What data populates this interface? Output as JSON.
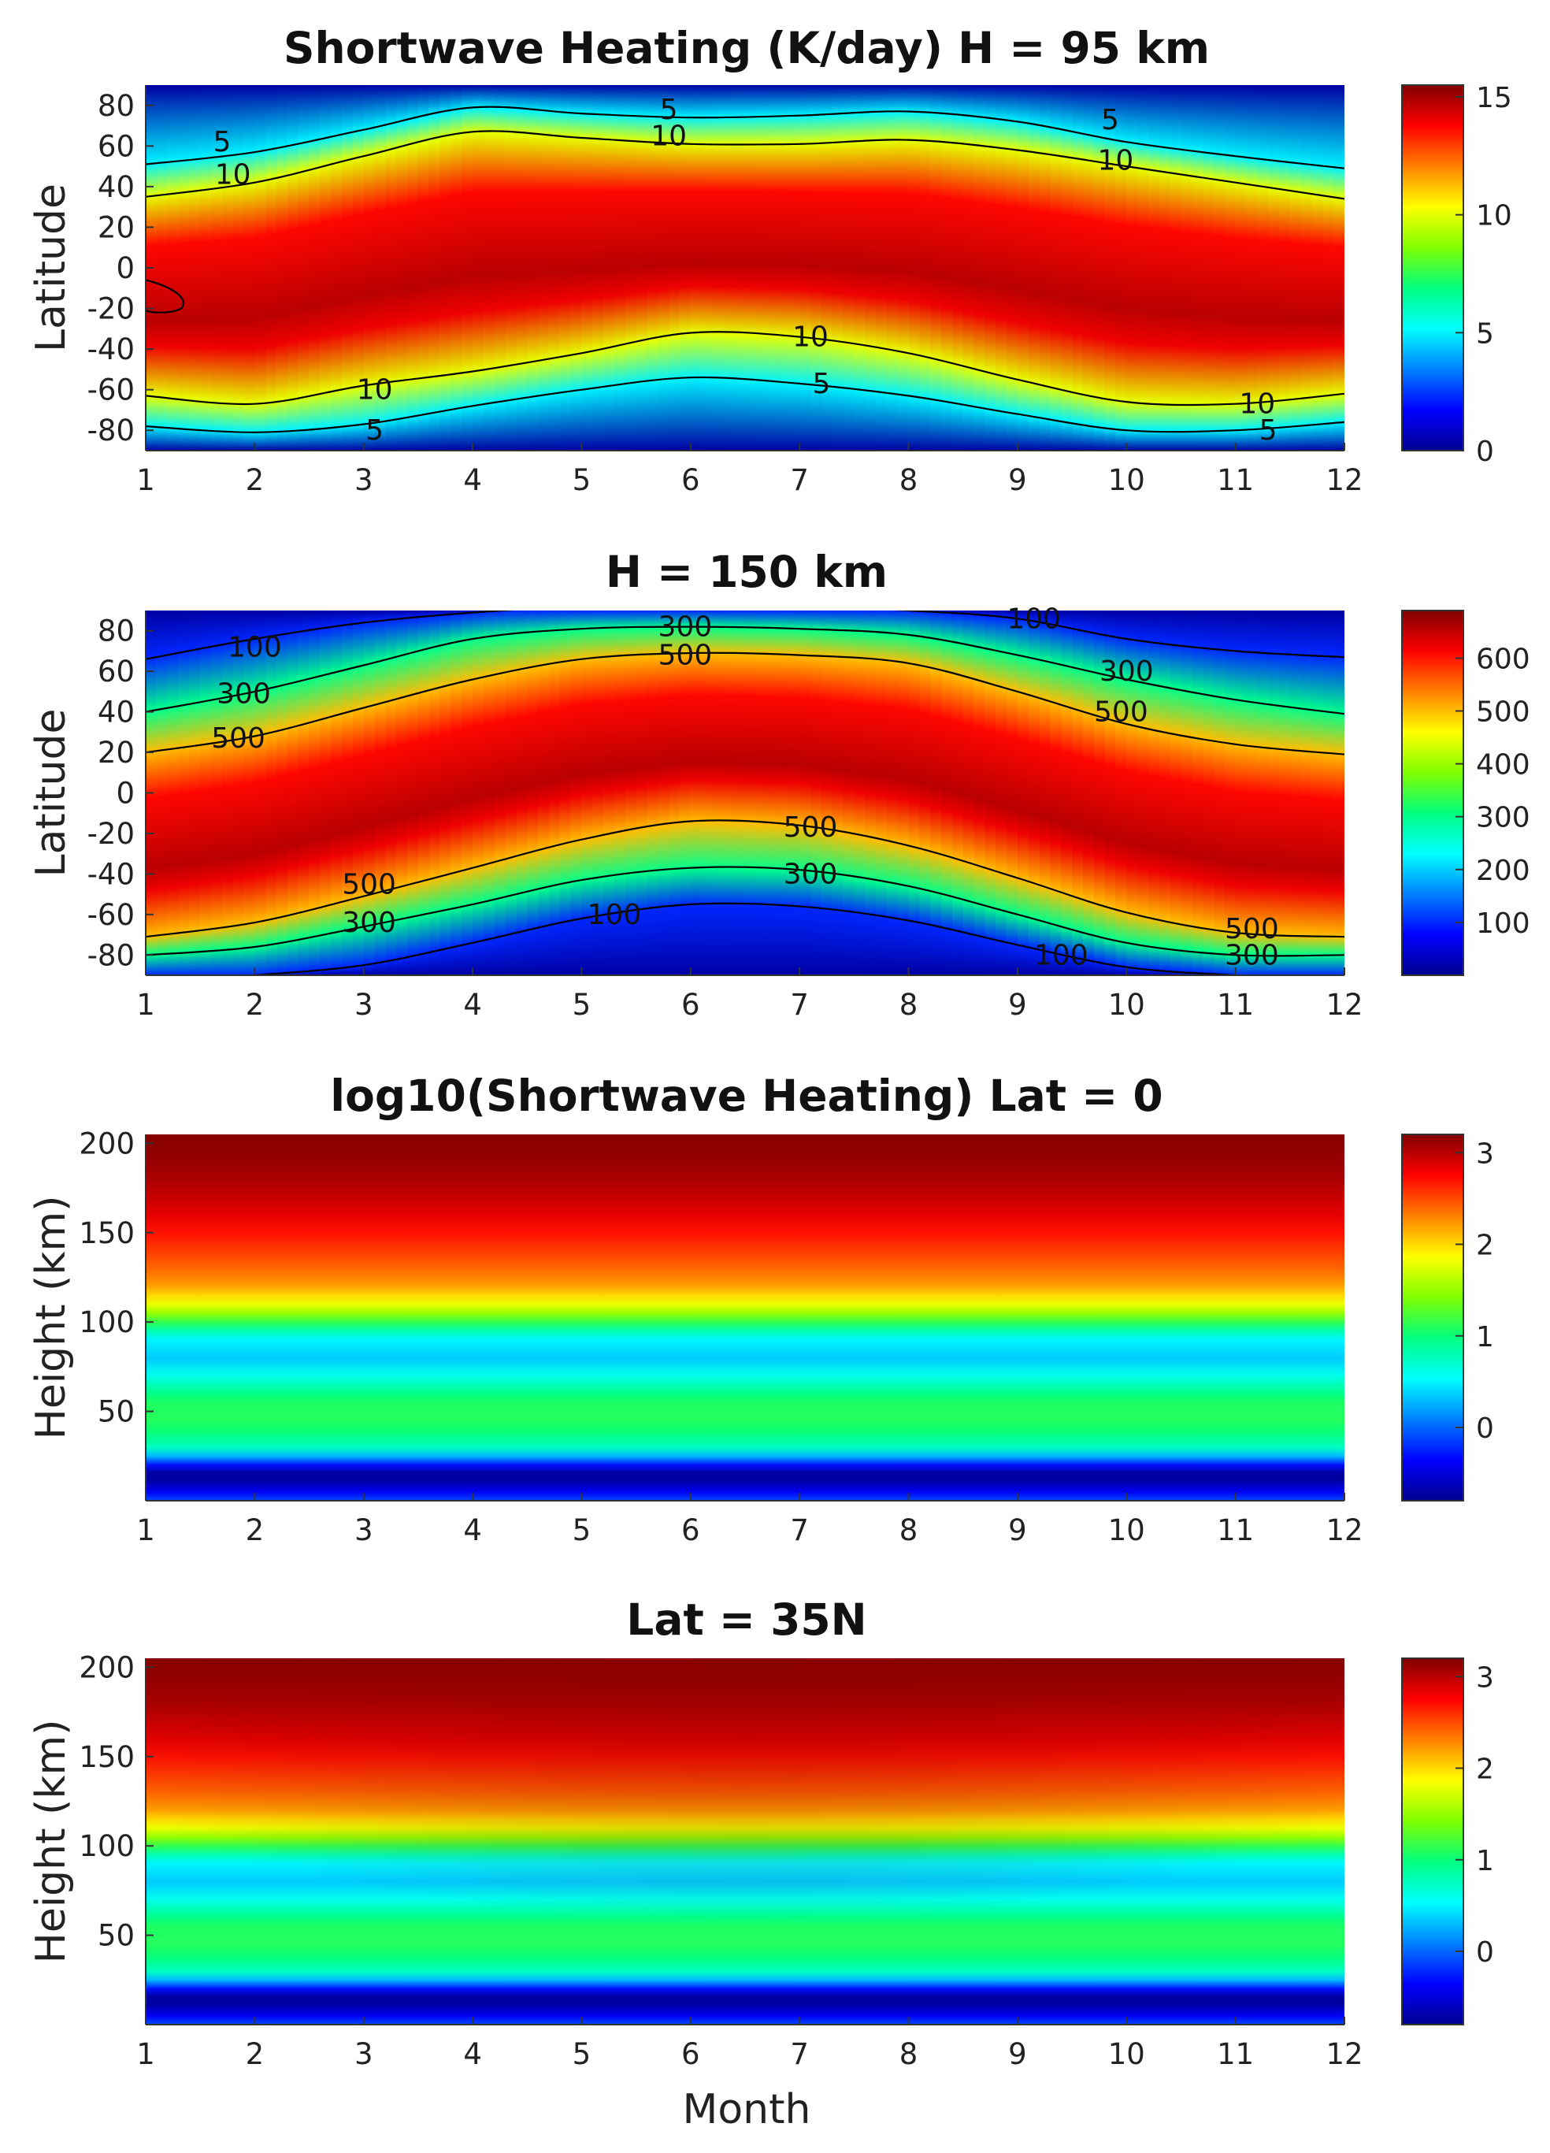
{
  "figure": {
    "xlabel": "Month",
    "colormap": [
      "#00008f",
      "#0000ff",
      "#0080ff",
      "#00ffff",
      "#00ff80",
      "#80ff00",
      "#ffff00",
      "#ff8000",
      "#ff0000",
      "#800000"
    ]
  },
  "chart_data": [
    {
      "type": "heatmap",
      "title": "Shortwave Heating (K/day) H = 95 km",
      "ylabel": "Latitude",
      "xlim": [
        1,
        12
      ],
      "ylim": [
        -90,
        90
      ],
      "x_ticks": [
        1,
        2,
        3,
        4,
        5,
        6,
        7,
        8,
        9,
        10,
        11,
        12
      ],
      "y_ticks": [
        80,
        60,
        40,
        20,
        0,
        -20,
        -40,
        -60,
        -80
      ],
      "colorbar": {
        "min": 0,
        "max": 15.5,
        "ticks": [
          15,
          10,
          5,
          0
        ]
      },
      "contours": [
        {
          "level": 5,
          "label": "5",
          "points": [
            [
              1,
              51
            ],
            [
              2,
              57
            ],
            [
              3,
              68
            ],
            [
              4,
              79
            ],
            [
              5,
              76
            ],
            [
              6,
              74
            ],
            [
              7,
              75
            ],
            [
              8,
              77
            ],
            [
              9,
              72
            ],
            [
              10,
              62
            ],
            [
              11,
              55
            ],
            [
              12,
              49
            ]
          ]
        },
        {
          "level": 10,
          "label": "10",
          "points": [
            [
              1,
              35
            ],
            [
              2,
              42
            ],
            [
              3,
              55
            ],
            [
              4,
              67
            ],
            [
              5,
              64
            ],
            [
              6,
              61
            ],
            [
              7,
              61
            ],
            [
              8,
              63
            ],
            [
              9,
              58
            ],
            [
              10,
              50
            ],
            [
              11,
              42
            ],
            [
              12,
              34
            ]
          ]
        },
        {
          "level": 10,
          "label": "10",
          "points": [
            [
              1,
              -63
            ],
            [
              2,
              -67
            ],
            [
              3,
              -58
            ],
            [
              4,
              -51
            ],
            [
              5,
              -42
            ],
            [
              6,
              -32
            ],
            [
              7,
              -34
            ],
            [
              8,
              -42
            ],
            [
              9,
              -55
            ],
            [
              10,
              -66
            ],
            [
              11,
              -67
            ],
            [
              12,
              -62
            ]
          ]
        },
        {
          "level": 5,
          "label": "5",
          "points": [
            [
              1,
              -78
            ],
            [
              2,
              -81
            ],
            [
              3,
              -77
            ],
            [
              4,
              -68
            ],
            [
              5,
              -60
            ],
            [
              6,
              -54
            ],
            [
              7,
              -57
            ],
            [
              8,
              -63
            ],
            [
              9,
              -72
            ],
            [
              10,
              -80
            ],
            [
              11,
              -80
            ],
            [
              12,
              -76
            ]
          ]
        }
      ],
      "contour_labels": [
        {
          "text": "5",
          "x": 1.7,
          "y": 62
        },
        {
          "text": "10",
          "x": 1.8,
          "y": 46
        },
        {
          "text": "5",
          "x": 5.8,
          "y": 78
        },
        {
          "text": "10",
          "x": 5.8,
          "y": 65
        },
        {
          "text": "5",
          "x": 9.85,
          "y": 73
        },
        {
          "text": "10",
          "x": 9.9,
          "y": 53
        },
        {
          "text": "10",
          "x": 3.1,
          "y": -60
        },
        {
          "text": "5",
          "x": 3.1,
          "y": -80
        },
        {
          "text": "10",
          "x": 7.1,
          "y": -34
        },
        {
          "text": "5",
          "x": 7.2,
          "y": -57
        },
        {
          "text": "10",
          "x": 11.2,
          "y": -67
        },
        {
          "text": "5",
          "x": 11.3,
          "y": -80
        }
      ]
    },
    {
      "type": "heatmap",
      "title": "H = 150 km",
      "ylabel": "Latitude",
      "xlim": [
        1,
        12
      ],
      "ylim": [
        -90,
        90
      ],
      "x_ticks": [
        1,
        2,
        3,
        4,
        5,
        6,
        7,
        8,
        9,
        10,
        11,
        12
      ],
      "y_ticks": [
        80,
        60,
        40,
        20,
        0,
        -20,
        -40,
        -60,
        -80
      ],
      "colorbar": {
        "min": 0,
        "max": 690,
        "ticks": [
          600,
          500,
          400,
          300,
          200,
          100
        ]
      },
      "contours": [
        {
          "level": 100,
          "label": "100",
          "points": [
            [
              1,
              66
            ],
            [
              2,
              76
            ],
            [
              3,
              84
            ],
            [
              4,
              89
            ],
            [
              5,
              92
            ],
            [
              6,
              92
            ],
            [
              7,
              92
            ],
            [
              8,
              90
            ],
            [
              9,
              86
            ],
            [
              10,
              76
            ],
            [
              11,
              70
            ],
            [
              12,
              67
            ]
          ]
        },
        {
          "level": 300,
          "label": "300",
          "points": [
            [
              1,
              40
            ],
            [
              2,
              50
            ],
            [
              3,
              63
            ],
            [
              4,
              76
            ],
            [
              5,
              81
            ],
            [
              6,
              82
            ],
            [
              7,
              81
            ],
            [
              8,
              78
            ],
            [
              9,
              68
            ],
            [
              10,
              56
            ],
            [
              11,
              46
            ],
            [
              12,
              39
            ]
          ]
        },
        {
          "level": 500,
          "label": "500",
          "points": [
            [
              1,
              20
            ],
            [
              2,
              28
            ],
            [
              3,
              42
            ],
            [
              4,
              56
            ],
            [
              5,
              66
            ],
            [
              6,
              69
            ],
            [
              7,
              68
            ],
            [
              8,
              64
            ],
            [
              9,
              50
            ],
            [
              10,
              34
            ],
            [
              11,
              24
            ],
            [
              12,
              19
            ]
          ]
        },
        {
          "level": 500,
          "label": "500",
          "points": [
            [
              1,
              -71
            ],
            [
              2,
              -64
            ],
            [
              3,
              -51
            ],
            [
              4,
              -37
            ],
            [
              5,
              -23
            ],
            [
              6,
              -14
            ],
            [
              7,
              -16
            ],
            [
              8,
              -26
            ],
            [
              9,
              -42
            ],
            [
              10,
              -59
            ],
            [
              11,
              -69
            ],
            [
              12,
              -71
            ]
          ]
        },
        {
          "level": 300,
          "label": "300",
          "points": [
            [
              1,
              -80
            ],
            [
              2,
              -76
            ],
            [
              3,
              -66
            ],
            [
              4,
              -55
            ],
            [
              5,
              -43
            ],
            [
              6,
              -37
            ],
            [
              7,
              -38
            ],
            [
              8,
              -46
            ],
            [
              9,
              -60
            ],
            [
              10,
              -74
            ],
            [
              11,
              -80
            ],
            [
              12,
              -80
            ]
          ]
        },
        {
          "level": 100,
          "label": "100",
          "points": [
            [
              1,
              -94
            ],
            [
              2,
              -90
            ],
            [
              3,
              -85
            ],
            [
              4,
              -74
            ],
            [
              5,
              -62
            ],
            [
              6,
              -55
            ],
            [
              7,
              -56
            ],
            [
              8,
              -63
            ],
            [
              9,
              -75
            ],
            [
              10,
              -86
            ],
            [
              11,
              -90
            ],
            [
              12,
              -93
            ]
          ]
        }
      ],
      "contour_labels": [
        {
          "text": "100",
          "x": 2.0,
          "y": 72
        },
        {
          "text": "300",
          "x": 1.9,
          "y": 49
        },
        {
          "text": "500",
          "x": 1.85,
          "y": 27
        },
        {
          "text": "300",
          "x": 5.95,
          "y": 82
        },
        {
          "text": "500",
          "x": 5.95,
          "y": 68
        },
        {
          "text": "100",
          "x": 9.15,
          "y": 86
        },
        {
          "text": "300",
          "x": 10.0,
          "y": 60
        },
        {
          "text": "500",
          "x": 9.95,
          "y": 40
        },
        {
          "text": "500",
          "x": 3.05,
          "y": -45
        },
        {
          "text": "300",
          "x": 3.05,
          "y": -64
        },
        {
          "text": "100",
          "x": 5.3,
          "y": -60
        },
        {
          "text": "500",
          "x": 7.1,
          "y": -17
        },
        {
          "text": "300",
          "x": 7.1,
          "y": -40
        },
        {
          "text": "100",
          "x": 9.4,
          "y": -80
        },
        {
          "text": "500",
          "x": 11.15,
          "y": -67
        },
        {
          "text": "300",
          "x": 11.15,
          "y": -80
        }
      ]
    },
    {
      "type": "heatmap",
      "title": "log10(Shortwave Heating) Lat = 0",
      "ylabel": "Height (km)",
      "xlim": [
        1,
        12
      ],
      "ylim": [
        0,
        205
      ],
      "x_ticks": [
        1,
        2,
        3,
        4,
        5,
        6,
        7,
        8,
        9,
        10,
        11,
        12
      ],
      "y_ticks": [
        200,
        150,
        100,
        50
      ],
      "colorbar": {
        "min": -0.8,
        "max": 3.2,
        "ticks": [
          3,
          2,
          1,
          0
        ]
      },
      "profile": {
        "height": [
          0,
          5,
          12,
          16,
          20,
          25,
          30,
          38,
          45,
          55,
          60,
          70,
          80,
          90,
          95,
          100,
          105,
          110,
          115,
          120,
          130,
          140,
          150,
          160,
          170,
          180,
          190,
          205
        ],
        "value": [
          -0.1,
          -0.4,
          -0.75,
          -0.7,
          -0.3,
          0.3,
          0.75,
          1.0,
          1.1,
          1.08,
          0.95,
          0.6,
          0.35,
          0.5,
          0.8,
          1.15,
          1.5,
          1.8,
          2.0,
          2.2,
          2.4,
          2.55,
          2.7,
          2.85,
          2.95,
          3.05,
          3.12,
          3.18
        ]
      }
    },
    {
      "type": "heatmap",
      "title": "Lat = 35N",
      "ylabel": "Height (km)",
      "xlim": [
        1,
        12
      ],
      "ylim": [
        0,
        205
      ],
      "x_ticks": [
        1,
        2,
        3,
        4,
        5,
        6,
        7,
        8,
        9,
        10,
        11,
        12
      ],
      "y_ticks": [
        200,
        150,
        100,
        50
      ],
      "colorbar": {
        "min": -0.8,
        "max": 3.2,
        "ticks": [
          3,
          2,
          1,
          0
        ]
      },
      "profile": {
        "height": [
          0,
          5,
          12,
          16,
          20,
          25,
          30,
          38,
          45,
          55,
          60,
          70,
          80,
          90,
          95,
          100,
          105,
          110,
          115,
          120,
          130,
          140,
          150,
          160,
          170,
          180,
          190,
          205
        ],
        "value": [
          -0.1,
          -0.4,
          -0.75,
          -0.7,
          -0.3,
          0.3,
          0.75,
          1.0,
          1.1,
          1.08,
          0.95,
          0.6,
          0.35,
          0.5,
          0.8,
          1.15,
          1.5,
          1.8,
          2.0,
          2.2,
          2.4,
          2.55,
          2.7,
          2.85,
          2.95,
          3.05,
          3.12,
          3.18
        ]
      }
    }
  ]
}
